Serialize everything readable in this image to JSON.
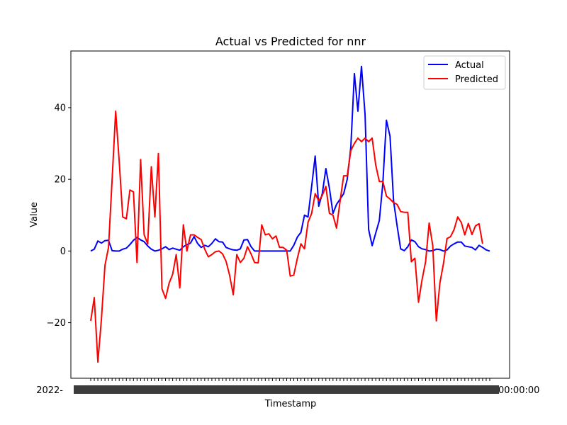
{
  "chart_data": {
    "type": "line",
    "title": "Actual vs Predicted for nnr",
    "xlabel": "Timestamp",
    "ylabel": "Value",
    "ylim": [
      -35.5,
      55.8
    ],
    "yticks": [
      -20,
      0,
      20,
      40
    ],
    "legend_position": "top-right",
    "grid": false,
    "x_tick_labels_note": "dense overlapping timestamp labels (illegible)",
    "x_left_tick_fragment": "2022-",
    "x_right_tick_fragment": "00:00:00",
    "series": [
      {
        "name": "Actual",
        "color": "#0000ff",
        "values": [
          0.0,
          0.5,
          2.8,
          2.2,
          2.9,
          3.0,
          0.1,
          0.0,
          0.0,
          0.5,
          0.8,
          1.8,
          3.0,
          3.8,
          3.1,
          2.6,
          1.4,
          0.5,
          0.0,
          0.2,
          0.6,
          1.2,
          0.4,
          0.8,
          0.5,
          0.2,
          1.2,
          1.8,
          2.2,
          4.0,
          2.1,
          1.0,
          1.6,
          1.2,
          2.1,
          3.4,
          2.6,
          2.5,
          1.0,
          0.6,
          0.3,
          0.2,
          0.6,
          3.1,
          3.2,
          1.2,
          0.0,
          0.0,
          0.0,
          0.0,
          0.0,
          0.0,
          0.0,
          0.0,
          0.0,
          0.0,
          0.0,
          1.6,
          3.9,
          5.2,
          10.0,
          9.5,
          18.0,
          26.5,
          12.5,
          16.0,
          23.0,
          17.5,
          10.5,
          13.0,
          14.5,
          16.0,
          20.0,
          29.0,
          49.5,
          39.0,
          51.5,
          38.0,
          6.0,
          1.5,
          5.0,
          8.5,
          19.0,
          36.5,
          32.0,
          14.0,
          7.0,
          0.6,
          0.1,
          1.2,
          3.1,
          2.6,
          1.2,
          0.6,
          0.4,
          0.0,
          0.1,
          0.5,
          0.4,
          0.0,
          0.3,
          1.4,
          2.0,
          2.5,
          2.5,
          1.4,
          1.2,
          1.0,
          0.3,
          1.6,
          1.0,
          0.3,
          0.0
        ]
      },
      {
        "name": "Predicted",
        "color": "#ff0000",
        "values": [
          -19.5,
          -13.0,
          -31.0,
          -19.0,
          -4.0,
          1.0,
          20.0,
          39.0,
          25.0,
          9.5,
          9.0,
          17.0,
          16.5,
          -3.2,
          25.5,
          4.5,
          2.0,
          23.5,
          9.5,
          27.2,
          -10.5,
          -13.2,
          -9.0,
          -6.5,
          -1.0,
          -10.3,
          7.3,
          0.0,
          4.5,
          4.5,
          3.8,
          3.2,
          0.5,
          -1.6,
          -1.0,
          -0.2,
          0.0,
          -0.8,
          -2.9,
          -6.8,
          -12.2,
          -1.0,
          -3.2,
          -2.0,
          1.2,
          -0.8,
          -3.2,
          -3.3,
          7.3,
          4.5,
          4.8,
          3.4,
          4.2,
          1.0,
          1.0,
          0.2,
          -7.0,
          -6.7,
          -2.0,
          2.0,
          0.6,
          8.0,
          10.5,
          16.0,
          14.0,
          15.5,
          18.0,
          10.5,
          10.0,
          6.4,
          14.0,
          21.0,
          21.0,
          28.0,
          30.0,
          31.5,
          30.5,
          31.5,
          30.5,
          31.5,
          24.0,
          19.4,
          19.4,
          15.3,
          14.5,
          13.5,
          13.0,
          11.0,
          10.8,
          10.8,
          -3.0,
          -2.0,
          -14.3,
          -8.0,
          -3.0,
          7.8,
          1.5,
          -19.5,
          -9.0,
          -3.5,
          3.5,
          4.0,
          6.0,
          9.5,
          8.0,
          4.5,
          7.7,
          4.6,
          7.0,
          7.6,
          2.0
        ]
      }
    ]
  }
}
